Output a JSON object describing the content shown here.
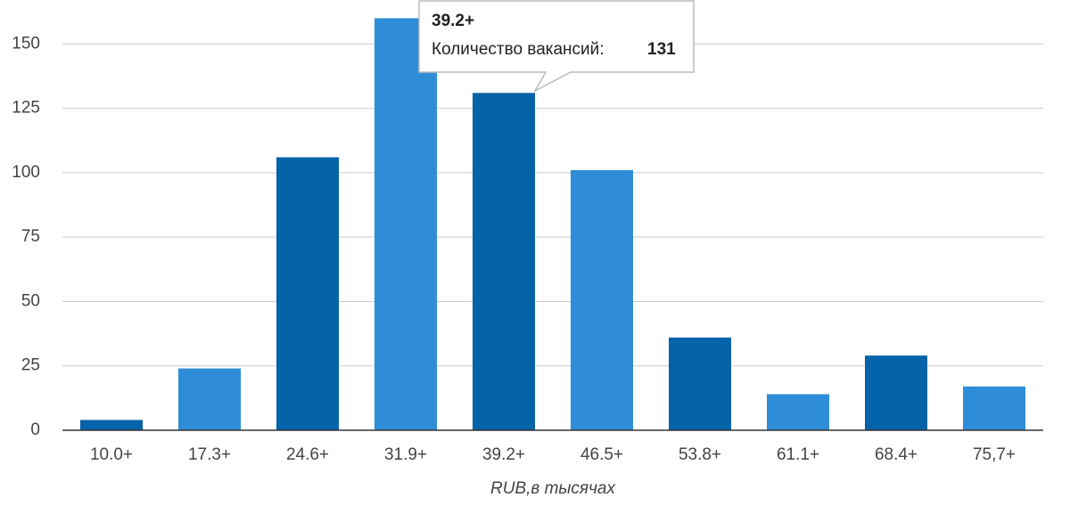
{
  "chart_data": {
    "type": "bar",
    "x_label": "RUB,в тысячах",
    "categories": [
      "10.0+",
      "17.3+",
      "24.6+",
      "31.9+",
      "39.2+",
      "46.5+",
      "53.8+",
      "61.1+",
      "68.4+",
      "75,7+"
    ],
    "values": [
      4,
      24,
      106,
      160,
      131,
      101,
      36,
      14,
      29,
      17
    ],
    "colors": [
      "#0563a9",
      "#2e8dd6",
      "#0563a9",
      "#2e8dd6",
      "#0563a9",
      "#2e8dd6",
      "#0563a9",
      "#2e8dd6",
      "#0563a9",
      "#2e8dd6"
    ],
    "ylim": [
      0,
      165
    ],
    "yticks": [
      0,
      25,
      50,
      75,
      100,
      125,
      150
    ],
    "grid": true,
    "tooltip_label": "Количество вакансий:"
  }
}
